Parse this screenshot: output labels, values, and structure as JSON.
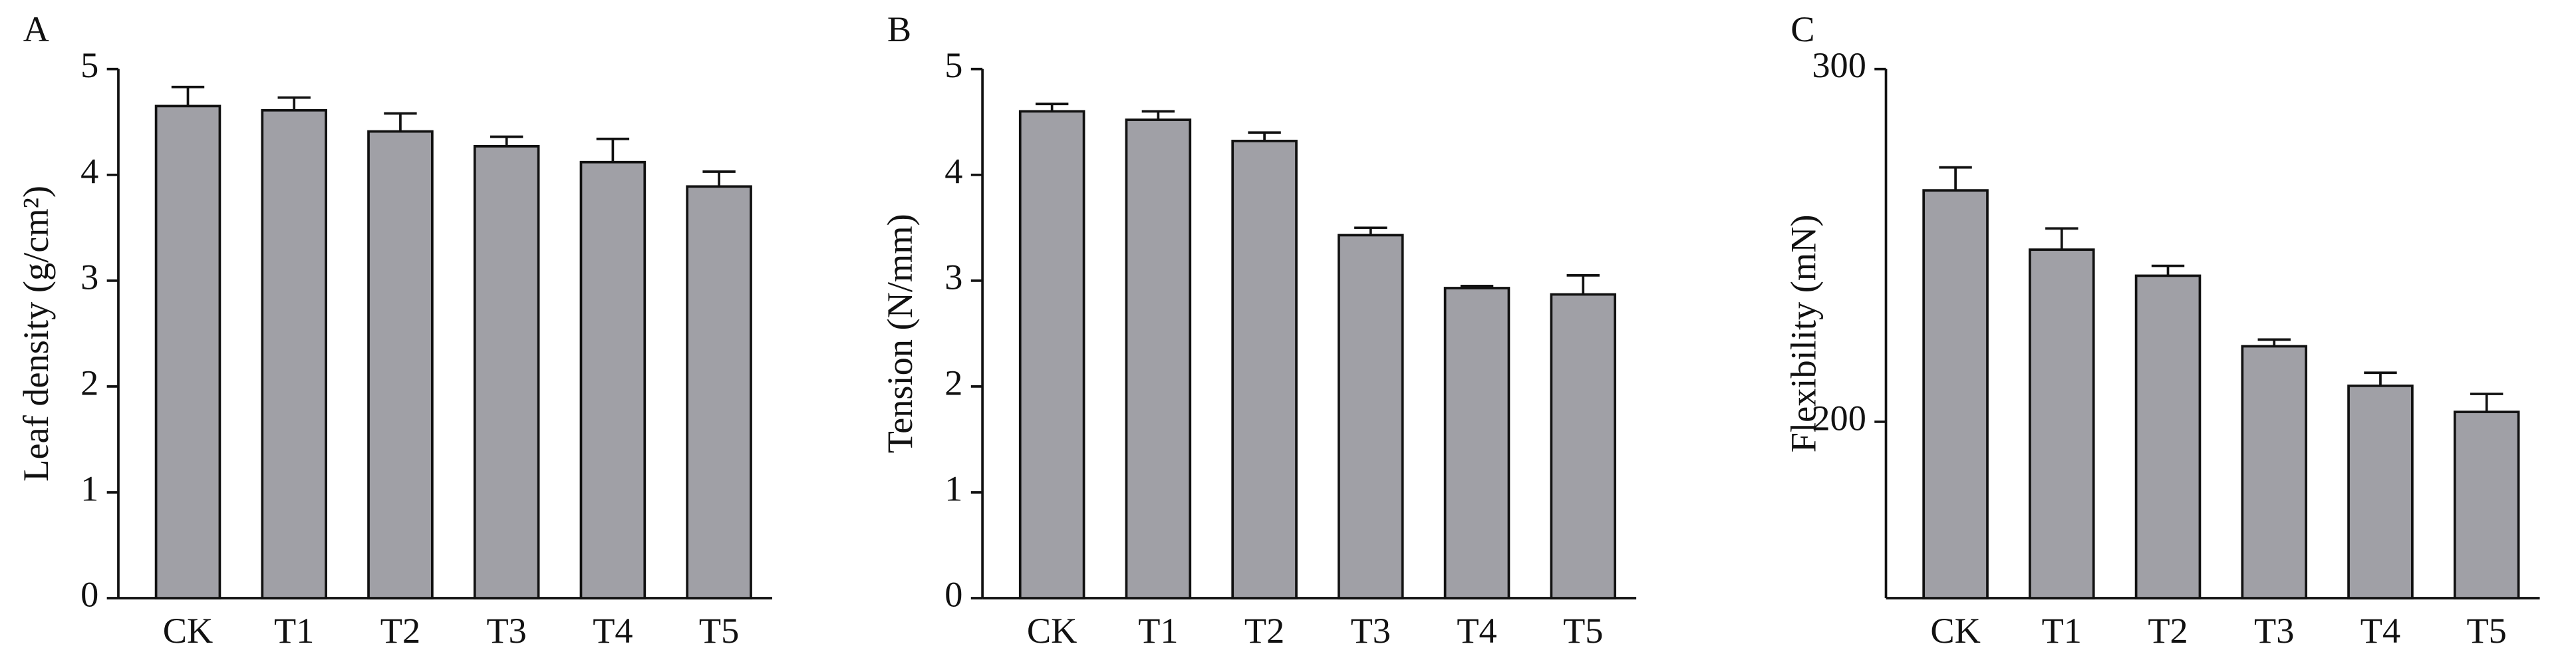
{
  "chart_data": [
    {
      "type": "bar",
      "panel_label": "A",
      "y_label": "Leaf density (g/cm²)",
      "categories": [
        "CK",
        "T1",
        "T2",
        "T3",
        "T4",
        "T5"
      ],
      "values": [
        4.65,
        4.61,
        4.41,
        4.27,
        4.12,
        3.89
      ],
      "errors": [
        0.18,
        0.12,
        0.17,
        0.09,
        0.22,
        0.14
      ],
      "color": "#a0a0a6",
      "ylim": [
        0,
        5
      ],
      "yticks": [
        0,
        1,
        2,
        3,
        4,
        5
      ]
    },
    {
      "type": "bar",
      "panel_label": "B",
      "y_label": "Tension (N/mm)",
      "categories": [
        "CK",
        "T1",
        "T2",
        "T3",
        "T4",
        "T5"
      ],
      "values": [
        4.6,
        4.52,
        4.32,
        3.43,
        2.93,
        2.87
      ],
      "errors": [
        0.07,
        0.08,
        0.08,
        0.07,
        0.02,
        0.18
      ],
      "color": "#a0a0a6",
      "ylim": [
        0,
        5
      ],
      "yticks": [
        0,
        1,
        2,
        3,
        4,
        5
      ]
    },
    {
      "type": "bar",
      "panel_label": "C",
      "y_label": "Flexibility (mN)",
      "categories": [
        "CK",
        "T1",
        "T2",
        "T3",
        "T4",
        "T5"
      ],
      "values": [
        265.6,
        248.8,
        241.4,
        221.4,
        210.2,
        202.8
      ],
      "errors": [
        6.5,
        6,
        2.8,
        1.9,
        3.7,
        5.1
      ],
      "color": "#a0a0a6",
      "ylim": [
        150,
        300
      ],
      "yticks": [
        200,
        300
      ]
    }
  ]
}
